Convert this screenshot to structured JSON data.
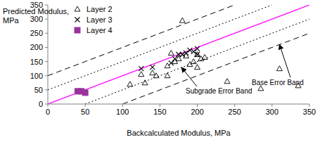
{
  "chart_data": {
    "type": "scatter",
    "x_label": "Backcalculated Modulus, MPa",
    "y_label": "Predicted Modulus, MPa",
    "xlim": [
      0,
      350
    ],
    "ylim": [
      0,
      350
    ],
    "xticks": [
      0,
      50,
      100,
      150,
      200,
      250,
      300,
      350
    ],
    "yticks": [
      0,
      50,
      100,
      150,
      200,
      250,
      300,
      350
    ],
    "grid": false,
    "legend": "top-left",
    "series": [
      {
        "name": "Layer 2",
        "color": "#000000",
        "marker": "triangle",
        "x": [
          110,
          125,
          130,
          140,
          145,
          160,
          160,
          165,
          170,
          175,
          180,
          185,
          190,
          195,
          200,
          200,
          205,
          210,
          240,
          285,
          310,
          335
        ],
        "values": [
          70,
          105,
          75,
          110,
          100,
          100,
          135,
          180,
          150,
          160,
          295,
          170,
          140,
          150,
          175,
          130,
          160,
          165,
          80,
          55,
          125,
          65
        ]
      },
      {
        "name": "Layer 3",
        "color": "#000000",
        "marker": "x",
        "x": [
          125,
          140,
          165,
          170,
          175,
          180,
          185,
          190,
          195,
          200,
          200
        ],
        "values": [
          125,
          130,
          145,
          160,
          175,
          175,
          180,
          190,
          185,
          195,
          175
        ]
      },
      {
        "name": "Layer 4",
        "color": "#993399",
        "marker": "square",
        "x": [
          40,
          45,
          50
        ],
        "values": [
          45,
          45,
          40
        ]
      }
    ],
    "lines": [
      {
        "x": [
          0,
          350
        ],
        "values": [
          0,
          350
        ],
        "color": "#ff00ff",
        "line_style": "solid"
      },
      {
        "x": [
          0,
          250
        ],
        "values": [
          100,
          350
        ],
        "color": "#000000",
        "line_style": "dashed"
      },
      {
        "x": [
          0,
          300
        ],
        "values": [
          50,
          350
        ],
        "color": "#000000",
        "line_style": "dotted"
      },
      {
        "x": [
          50,
          350
        ],
        "values": [
          0,
          300
        ],
        "color": "#000000",
        "line_style": "dotted"
      },
      {
        "x": [
          100,
          350
        ],
        "values": [
          0,
          250
        ],
        "color": "#000000",
        "line_style": "dashed"
      }
    ],
    "annotations": [
      {
        "text": "Base Error Band"
      },
      {
        "text": "Subgrade Error Band"
      }
    ]
  }
}
